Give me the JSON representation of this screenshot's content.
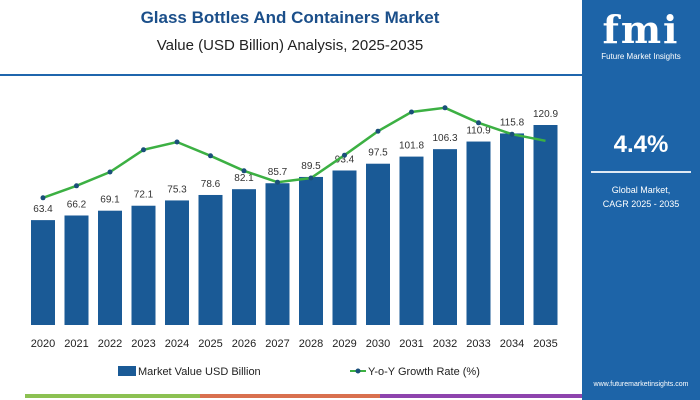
{
  "chart_data": {
    "type": "bar",
    "title": "Glass Bottles And Containers Market",
    "subtitle": "Value (USD Billion) Analysis, 2025-2035",
    "categories": [
      "2020",
      "2021",
      "2022",
      "2023",
      "2024",
      "2025",
      "2026",
      "2027",
      "2028",
      "2029",
      "2030",
      "2031",
      "2032",
      "2033",
      "2034",
      "2035"
    ],
    "series": [
      {
        "name": "Market Value USD Billion",
        "type": "bar",
        "color": "#1a5a96",
        "values": [
          63.4,
          66.2,
          69.1,
          72.1,
          75.3,
          78.6,
          82.1,
          85.7,
          89.5,
          93.4,
          97.5,
          101.8,
          106.3,
          110.9,
          115.8,
          120.9
        ]
      },
      {
        "name": "Y-o-Y Growth Rate (%)",
        "type": "line",
        "color": "#3cb043",
        "values": [
          3.87,
          4.07,
          4.3,
          4.67,
          4.8,
          4.57,
          4.32,
          4.13,
          4.2,
          4.58,
          4.98,
          5.3,
          5.37,
          5.12,
          4.93,
          4.82
        ]
      }
    ],
    "ylim": [
      0,
      125
    ],
    "y2lim": [
      3.5,
      5.5
    ],
    "grid": false,
    "legend": "bottom"
  },
  "panel": {
    "logo": "fmi",
    "brand": "Future Market Insights",
    "cagr": "4.4%",
    "cagr_label_1": "Global Market,",
    "cagr_label_2": "CAGR 2025 - 2035",
    "url": "www.futuremarketinsights.com"
  },
  "colors": {
    "panel": "#1d64a8",
    "title": "#1b4f8a",
    "strip": [
      "#8cc152",
      "#d9704f",
      "#8e44ad"
    ]
  }
}
